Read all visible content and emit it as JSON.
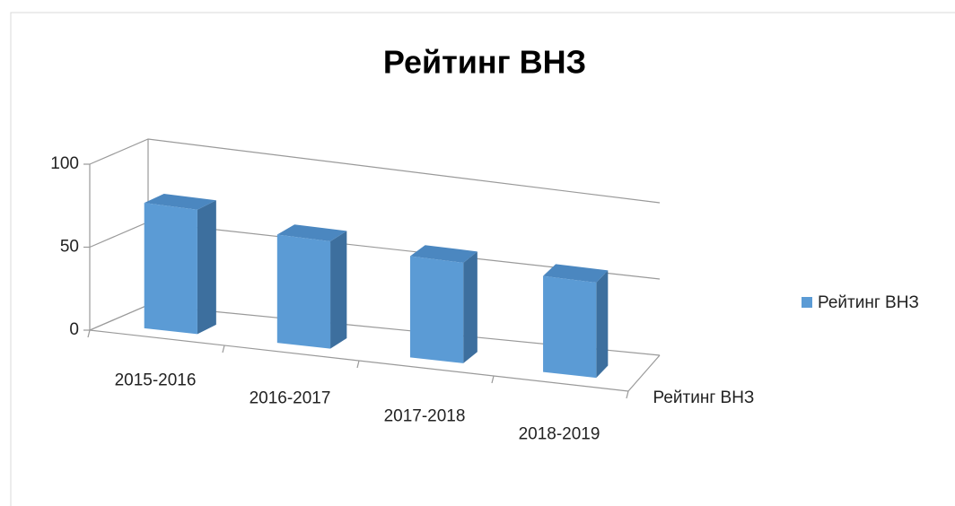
{
  "chart_data": {
    "type": "bar3d",
    "title": "Рейтинг ВНЗ",
    "categories": [
      "2015-2016",
      "2016-2017",
      "2017-2018",
      "2018-2019"
    ],
    "series": [
      {
        "name": "Рейтинг ВНЗ",
        "color": "#5b9bd5",
        "values": [
          76,
          67,
          64,
          62
        ]
      }
    ],
    "ylim": [
      0,
      100
    ],
    "yticks": [
      0,
      50,
      100
    ],
    "grid": true,
    "legend": "right"
  }
}
